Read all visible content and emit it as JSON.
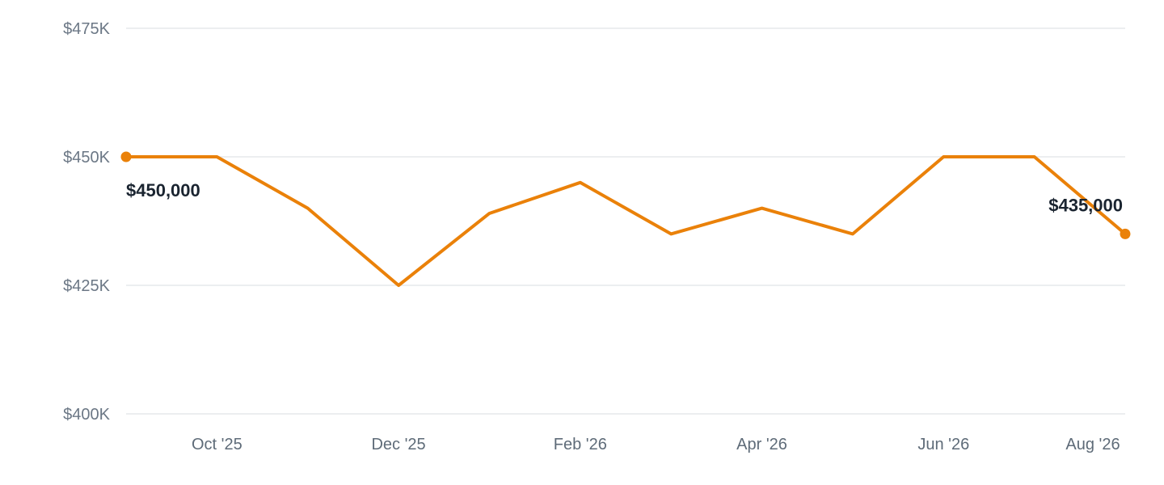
{
  "chart_data": {
    "type": "line",
    "x": [
      "Sep '25",
      "Oct '25",
      "Nov '25",
      "Dec '25",
      "Jan '26",
      "Feb '26",
      "Mar '26",
      "Apr '26",
      "May '26",
      "Jun '26",
      "Jul '26",
      "Aug '26"
    ],
    "x_tick_labels": [
      "",
      "Oct '25",
      "",
      "Dec '25",
      "",
      "Feb '26",
      "",
      "Apr '26",
      "",
      "Jun '26",
      "",
      "Aug '26"
    ],
    "series": [
      {
        "values": [
          450000,
          450000,
          440000,
          425000,
          439000,
          445000,
          435000,
          440000,
          435000,
          450000,
          450000,
          435000
        ]
      }
    ],
    "y_ticks": [
      {
        "value": 400000,
        "label": "$400K"
      },
      {
        "value": 425000,
        "label": "$425K"
      },
      {
        "value": 450000,
        "label": "$450K"
      },
      {
        "value": 475000,
        "label": "$475K"
      }
    ],
    "ylim": [
      400000,
      475000
    ],
    "grid": true,
    "legend": "none",
    "annotations": [
      {
        "index": 0,
        "label": "$450,000"
      },
      {
        "index": 11,
        "label": "$435,000"
      }
    ],
    "colors": {
      "line": "#ea8109",
      "grid": "#e6e8eb"
    },
    "title": "",
    "xlabel": "",
    "ylabel": ""
  }
}
